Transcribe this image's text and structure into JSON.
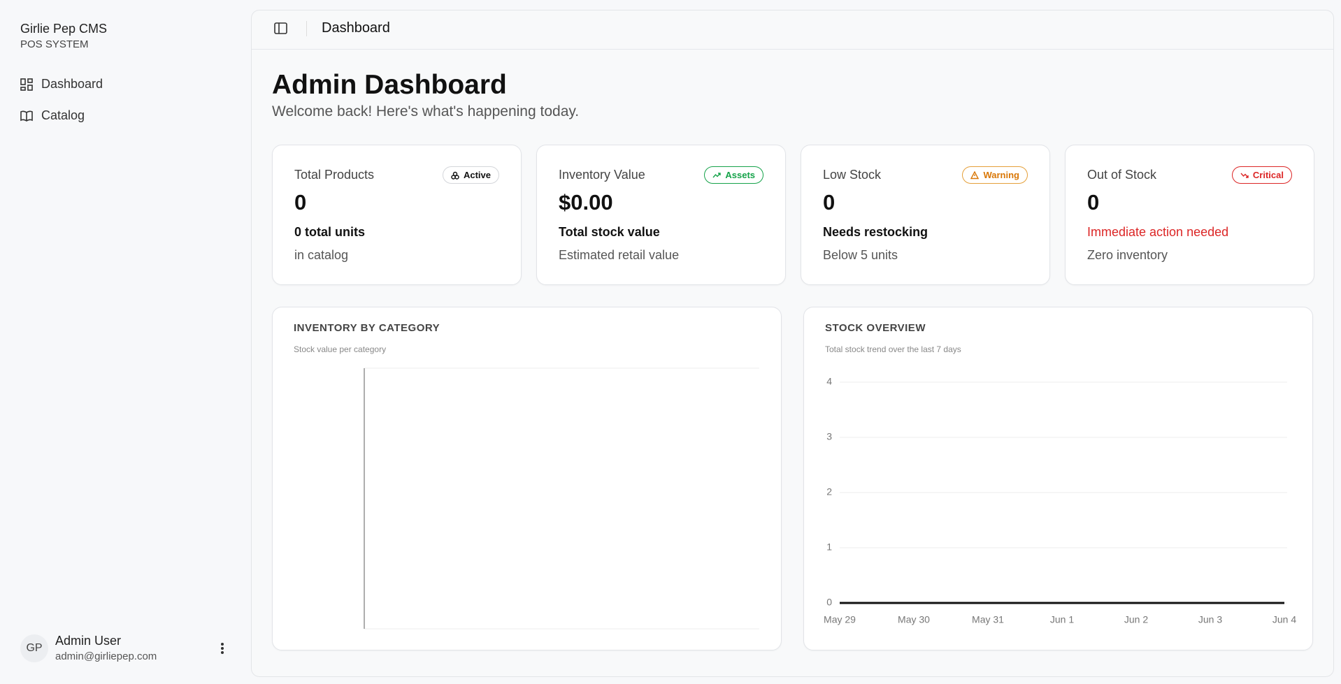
{
  "sidebar": {
    "brand": "Girlie Pep CMS",
    "subtitle": "POS SYSTEM",
    "nav": [
      "Dashboard",
      "Catalog"
    ],
    "user": {
      "initials": "GP",
      "name": "Admin User",
      "email": "admin@girliepep.com"
    }
  },
  "header": {
    "title": "Dashboard"
  },
  "page": {
    "title": "Admin Dashboard",
    "subtitle": "Welcome back! Here's what's happening today."
  },
  "cards": [
    {
      "label": "Total Products",
      "badge": "Active",
      "value": "0",
      "detail": "0 total units",
      "note": "in catalog"
    },
    {
      "label": "Inventory Value",
      "badge": "Assets",
      "value": "$0.00",
      "detail": "Total stock value",
      "note": "Estimated retail value"
    },
    {
      "label": "Low Stock",
      "badge": "Warning",
      "value": "0",
      "detail": "Needs restocking",
      "note": "Below 5 units"
    },
    {
      "label": "Out of Stock",
      "badge": "Critical",
      "value": "0",
      "detail": "Immediate action needed",
      "note": "Zero inventory"
    }
  ],
  "chart_data": [
    {
      "type": "bar",
      "title": "INVENTORY BY CATEGORY",
      "subtitle": "Stock value per category"
    },
    {
      "type": "line",
      "title": "STOCK OVERVIEW",
      "subtitle": "Total stock trend over the last 7 days",
      "x": [
        "May 29",
        "May 30",
        "May 31",
        "Jun 1",
        "Jun 2",
        "Jun 3",
        "Jun 4"
      ],
      "values": [
        0,
        0,
        0,
        0,
        0,
        0,
        0
      ],
      "color": "#111111",
      "ylim": [
        0,
        4
      ],
      "yticks": [
        0,
        1,
        2,
        3,
        4
      ],
      "grid": true
    }
  ]
}
